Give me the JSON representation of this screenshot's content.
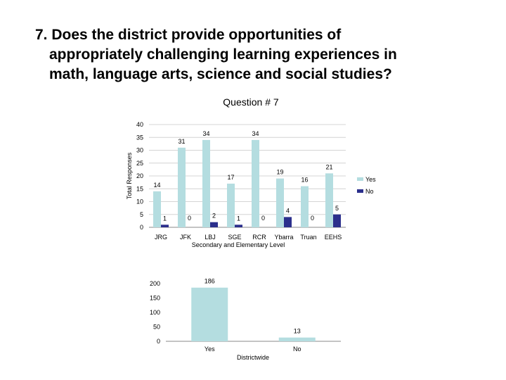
{
  "slide": {
    "title_lines": [
      "7. Does the district provide opportunities of",
      "appropriately challenging learning experiences in",
      "math, language arts, science and social studies?"
    ]
  },
  "colors": {
    "yes": "#b4dde0",
    "no": "#2b2f8c",
    "grid": "#d4d4d4",
    "axis": "#8a8a8a"
  },
  "chart_data": [
    {
      "type": "bar",
      "title": "Question # 7",
      "xlabel": "Secondary and Elementary Level",
      "ylabel": "Total Responses",
      "ylim": [
        0,
        40
      ],
      "yticks": [
        0,
        5,
        10,
        15,
        20,
        25,
        30,
        35,
        40
      ],
      "grid": true,
      "legend": "right",
      "categories": [
        "JRG",
        "JFK",
        "LBJ",
        "SGE",
        "RCR",
        "Ybarra",
        "Truan",
        "EEHS"
      ],
      "series": [
        {
          "name": "Yes",
          "values": [
            14,
            31,
            34,
            17,
            34,
            19,
            16,
            21
          ]
        },
        {
          "name": "No",
          "values": [
            1,
            0,
            2,
            1,
            0,
            4,
            0,
            5
          ]
        }
      ]
    },
    {
      "type": "bar",
      "title": "",
      "xlabel": "Districtwide",
      "ylabel": "",
      "ylim": [
        0,
        200
      ],
      "yticks": [
        0,
        50,
        100,
        150,
        200
      ],
      "grid": false,
      "categories": [
        "Yes",
        "No"
      ],
      "values": [
        186,
        13
      ]
    }
  ]
}
